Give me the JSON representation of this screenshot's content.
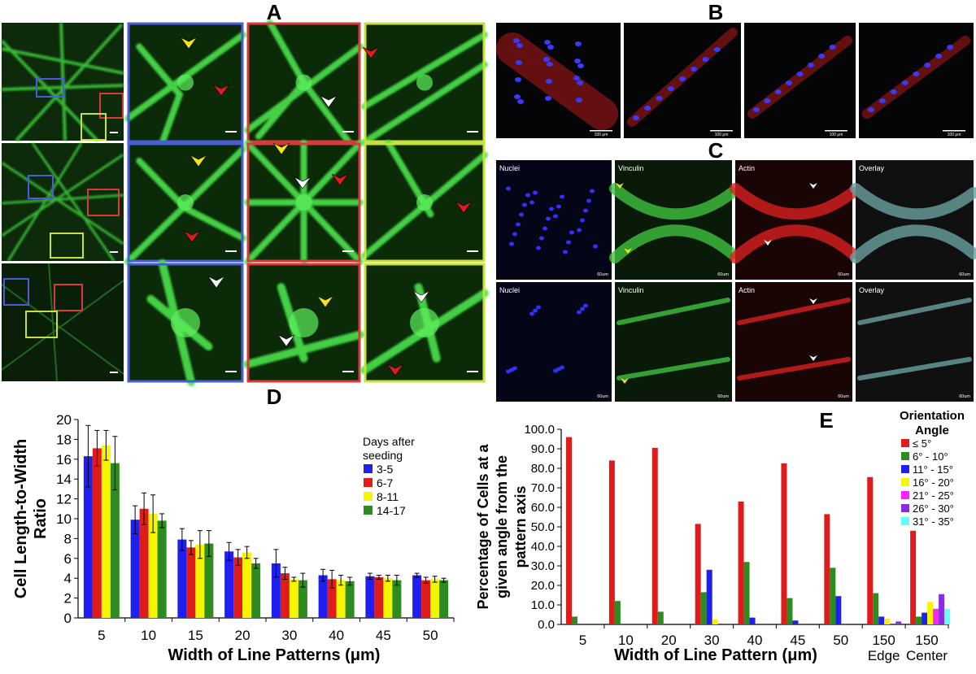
{
  "panels": {
    "A": {
      "letter": "A"
    },
    "B": {
      "letter": "B",
      "scale_bars": [
        "100 μm",
        "100 μm",
        "100 μm",
        "100 μm"
      ]
    },
    "C": {
      "letter": "C",
      "column_labels": [
        "Nuclei",
        "Vinculin",
        "Actin",
        "Overlay"
      ],
      "scale_bars": [
        "60um",
        "60um",
        "60um",
        "60um",
        "60um",
        "60um",
        "60um",
        "60um"
      ]
    },
    "D": {
      "letter": "D"
    },
    "E": {
      "letter": "E"
    }
  },
  "colors": {
    "red": "#e01b1b",
    "green": "#2e8b1f",
    "blue": "#1f1ff0",
    "yellow": "#f5f500",
    "magenta": "#ff22ff",
    "purple": "#8a2be2",
    "cyan": "#66ffff",
    "micro_green": "#3ce63c",
    "box_blue": "#4a5cd6",
    "box_red": "#d83a3a",
    "box_yellow": "#c8e03a"
  },
  "chart_data": [
    {
      "id": "D",
      "type": "bar",
      "ylabel": "Cell Length-to-Width Ratio",
      "xlabel": "Width of Line Patterns (μm)",
      "ylim": [
        0,
        20
      ],
      "yticks": [
        0,
        2,
        4,
        6,
        8,
        10,
        12,
        14,
        16,
        18,
        20
      ],
      "categories": [
        "5",
        "10",
        "15",
        "20",
        "30",
        "40",
        "45",
        "50"
      ],
      "legend_title": "Days after seeding",
      "legend_position": "top-right",
      "series": [
        {
          "name": "3-5",
          "color": "#1f1ff0",
          "values": [
            16.3,
            9.9,
            7.9,
            6.7,
            5.5,
            4.3,
            4.2,
            4.3
          ],
          "errors": [
            3.1,
            1.4,
            1.1,
            0.9,
            1.4,
            0.6,
            0.3,
            0.2
          ]
        },
        {
          "name": "6-7",
          "color": "#e01b1b",
          "values": [
            17.1,
            11.0,
            7.1,
            6.1,
            4.5,
            3.9,
            4.1,
            3.8
          ],
          "errors": [
            1.8,
            1.6,
            0.7,
            0.8,
            0.6,
            0.9,
            0.2,
            0.3
          ]
        },
        {
          "name": "8-11",
          "color": "#f5f500",
          "values": [
            17.4,
            10.5,
            7.4,
            6.6,
            3.9,
            3.8,
            4.0,
            3.9
          ],
          "errors": [
            1.5,
            1.9,
            1.4,
            0.6,
            0.2,
            0.5,
            0.3,
            0.3
          ]
        },
        {
          "name": "14-17",
          "color": "#2e8b1f",
          "values": [
            15.6,
            9.8,
            7.5,
            5.5,
            3.8,
            3.7,
            3.8,
            3.8
          ],
          "errors": [
            2.7,
            0.7,
            1.3,
            0.5,
            0.7,
            0.4,
            0.5,
            0.2
          ]
        }
      ]
    },
    {
      "id": "E",
      "type": "bar",
      "ylabel": "Percentage of Cells at a given angle from the pattern axis",
      "xlabel": "Width of Line Pattern (μm)",
      "ylim": [
        0,
        100
      ],
      "yticks": [
        "0.0",
        "10.0",
        "20.0",
        "30.0",
        "40.0",
        "50.0",
        "60.0",
        "70.0",
        "80.0",
        "90.0",
        "100.0"
      ],
      "categories": [
        "5",
        "10",
        "20",
        "30",
        "40",
        "45",
        "50",
        "150",
        "150"
      ],
      "category_sublabels": [
        "",
        "",
        "",
        "",
        "",
        "",
        "",
        "Edge",
        "Center"
      ],
      "legend_title": "Orientation Angle",
      "legend_position": "top-right",
      "series": [
        {
          "name": "≤ 5°",
          "color": "#e01b1b",
          "values": [
            96,
            84,
            90.5,
            51.5,
            63,
            82.5,
            56.5,
            75.5,
            48
          ]
        },
        {
          "name": "6° - 10°",
          "color": "#2e8b1f",
          "values": [
            4,
            12,
            6.5,
            16.5,
            32,
            13.5,
            29,
            16,
            4
          ]
        },
        {
          "name": "11° - 15°",
          "color": "#1f1ff0",
          "values": [
            0,
            0,
            0,
            28,
            3.5,
            2,
            14.5,
            4,
            6
          ]
        },
        {
          "name": "16° - 20°",
          "color": "#f5f500",
          "values": [
            0,
            0,
            0,
            2.5,
            0,
            0,
            0,
            3,
            11.5
          ]
        },
        {
          "name": "21° - 25°",
          "color": "#ff22ff",
          "values": [
            0,
            0,
            0,
            0,
            0,
            0,
            0,
            0,
            8
          ]
        },
        {
          "name": "26° - 30°",
          "color": "#8a2be2",
          "values": [
            0,
            0,
            0,
            0,
            0,
            0,
            0,
            1.5,
            15.5
          ]
        },
        {
          "name": "31° - 35°",
          "color": "#66ffff",
          "values": [
            0,
            0,
            0,
            0,
            0,
            0,
            0,
            0,
            8
          ]
        }
      ]
    }
  ]
}
